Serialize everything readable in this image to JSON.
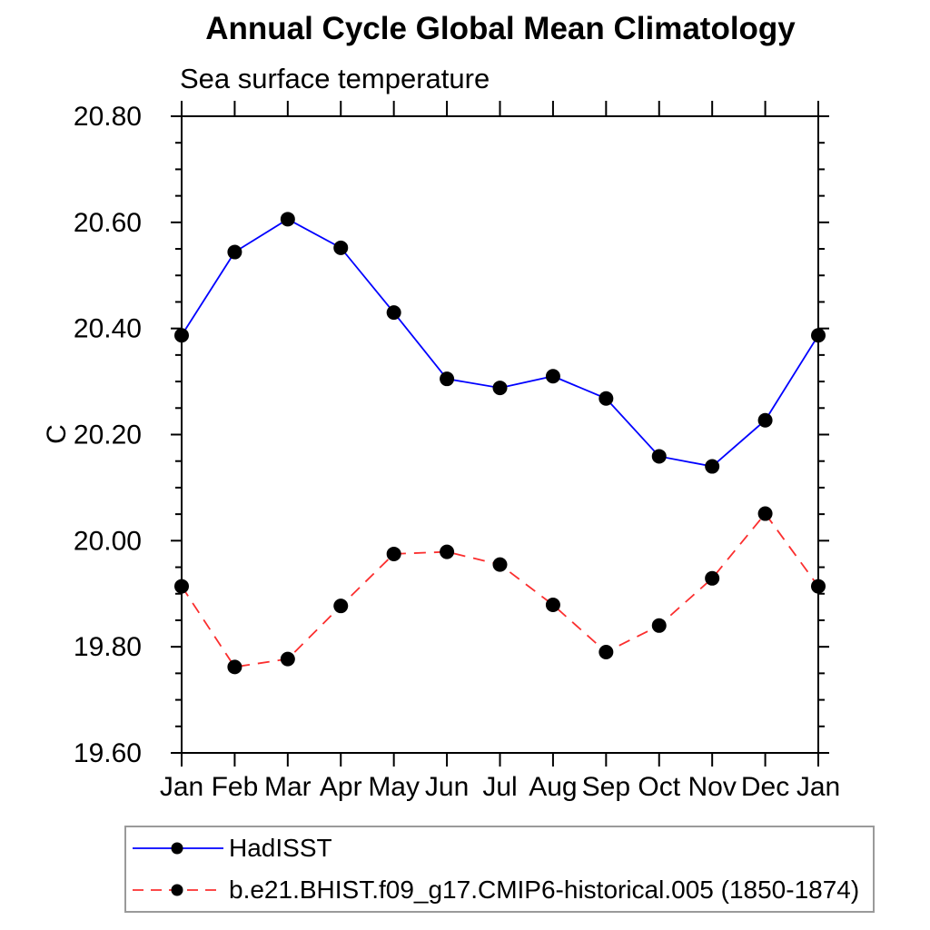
{
  "chart_data": {
    "type": "line",
    "title": "Annual Cycle Global Mean Climatology",
    "subtitle": "Sea surface temperature",
    "ylabel": "C",
    "xlabel": "",
    "x_tick_labels": [
      "Jan",
      "Feb",
      "Mar",
      "Apr",
      "May",
      "Jun",
      "Jul",
      "Aug",
      "Sep",
      "Oct",
      "Nov",
      "Dec",
      "Jan"
    ],
    "ylim": [
      19.6,
      20.8
    ],
    "y_tick_labels": [
      "19.60",
      "19.80",
      "20.00",
      "20.20",
      "20.40",
      "20.60",
      "20.80"
    ],
    "y_major_step": 0.2,
    "y_minor_step": 0.05,
    "grid": false,
    "legend_position": "bottom-left",
    "axis_color": "#000000",
    "marker_shape": "filled-circle",
    "series": [
      {
        "name": "HadISST",
        "color": "#0000ff",
        "style": "solid",
        "marker_color": "#000000",
        "values": [
          20.387,
          20.544,
          20.606,
          20.552,
          20.43,
          20.305,
          20.288,
          20.31,
          20.268,
          20.159,
          20.14,
          20.227,
          20.387
        ]
      },
      {
        "name": "b.e21.BHIST.f09_g17.CMIP6-historical.005 (1850-1874)",
        "color": "#fb2e2e",
        "style": "dashed",
        "marker_color": "#000000",
        "values": [
          19.914,
          19.762,
          19.777,
          19.877,
          19.975,
          19.979,
          19.955,
          19.879,
          19.79,
          19.84,
          19.929,
          20.051,
          19.914
        ]
      }
    ]
  }
}
